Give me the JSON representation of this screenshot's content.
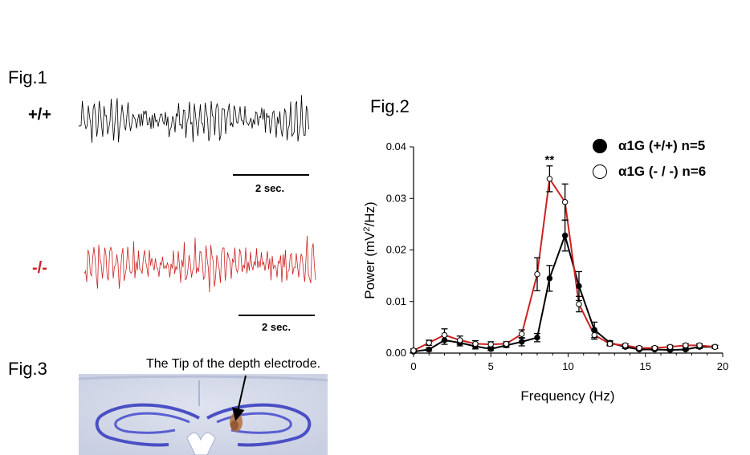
{
  "fig1": {
    "label": "Fig.1",
    "wt": {
      "label": "+/+",
      "color": "#000000"
    },
    "ko": {
      "label": "-/-",
      "color": "#cc2222"
    },
    "scale_bar_label": "2 sec."
  },
  "fig3": {
    "label": "Fig.3",
    "annotation": "The Tip of the depth electrode."
  },
  "chart_data": {
    "type": "line",
    "title": "Fig.2",
    "xlabel": "Frequency (Hz)",
    "ylabel_main": "Power (mV",
    "ylabel_sup": "2",
    "ylabel_end": "/Hz)",
    "xlim": [
      0,
      20
    ],
    "ylim": [
      0,
      0.04
    ],
    "x_ticks": [
      0,
      5,
      10,
      15,
      20
    ],
    "y_ticks": [
      "0.00",
      "0.01",
      "0.02",
      "0.03",
      "0.04"
    ],
    "significance": "**",
    "significance_x": 8.8,
    "significance_y": 0.0375,
    "series": [
      {
        "name": "α1G (+/+) n=5",
        "marker": "filled",
        "color": "#000000",
        "x": [
          0,
          1,
          2,
          3,
          4,
          5,
          6,
          7,
          8,
          8.8,
          9.8,
          10.7,
          11.7,
          12.7,
          13.7,
          14.6,
          15.6,
          16.6,
          17.6,
          18.5,
          19.5
        ],
        "y": [
          0.0003,
          0.0007,
          0.0025,
          0.002,
          0.0013,
          0.0008,
          0.0015,
          0.0022,
          0.003,
          0.0145,
          0.0228,
          0.013,
          0.0045,
          0.002,
          0.0012,
          0.0007,
          0.0007,
          0.0006,
          0.0007,
          0.0012,
          0.0012
        ],
        "err": [
          0.0002,
          0.0003,
          0.0008,
          0.0006,
          0.0005,
          0.0003,
          0.0004,
          0.0008,
          0.0008,
          0.0025,
          0.003,
          0.0028,
          0.0015,
          0.0004,
          0.0003,
          0.0002,
          0.0002,
          0.0002,
          0.0002,
          0.0003,
          0.0003
        ]
      },
      {
        "name": "α1G (- / -) n=6",
        "marker": "open",
        "color": "#cc2222",
        "x": [
          0,
          1,
          2,
          3,
          4,
          5,
          6,
          7,
          8,
          8.8,
          9.8,
          10.7,
          11.7,
          12.7,
          13.7,
          14.6,
          15.6,
          16.6,
          17.6,
          18.5,
          19.5
        ],
        "y": [
          0.0005,
          0.002,
          0.0035,
          0.0025,
          0.0018,
          0.0017,
          0.0018,
          0.0037,
          0.0153,
          0.0338,
          0.0293,
          0.0095,
          0.0035,
          0.0018,
          0.0015,
          0.001,
          0.001,
          0.0012,
          0.0015,
          0.0015,
          0.0012
        ],
        "err": [
          0.0003,
          0.0005,
          0.0012,
          0.0008,
          0.0006,
          0.0005,
          0.0004,
          0.0008,
          0.0032,
          0.0025,
          0.0035,
          0.0015,
          0.0008,
          0.0004,
          0.0003,
          0.0003,
          0.0003,
          0.0003,
          0.0003,
          0.0003,
          0.0003
        ]
      }
    ]
  }
}
